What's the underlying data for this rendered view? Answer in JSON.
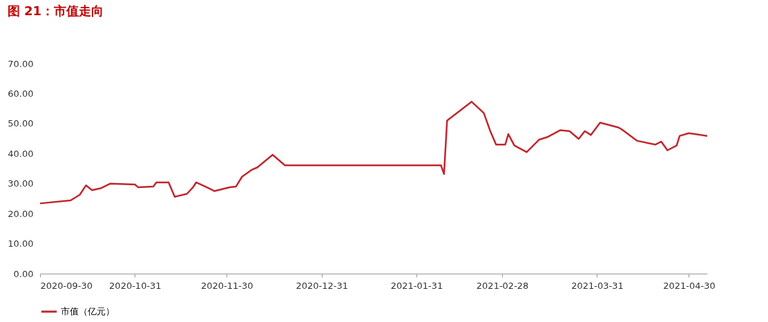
{
  "chart_data": {
    "type": "line",
    "title": "图 21：市值走向",
    "x": [
      "2020-09-30",
      "2020-10-10",
      "2020-10-13",
      "2020-10-15",
      "2020-10-17",
      "2020-10-20",
      "2020-10-23",
      "2020-10-31",
      "2020-11-01",
      "2020-11-06",
      "2020-11-07",
      "2020-11-11",
      "2020-11-13",
      "2020-11-17",
      "2020-11-19",
      "2020-11-20",
      "2020-11-24",
      "2020-11-26",
      "2020-12-01",
      "2020-12-03",
      "2020-12-05",
      "2020-12-08",
      "2020-12-10",
      "2020-12-15",
      "2020-12-19",
      "2021-02-08",
      "2021-02-09",
      "2021-02-10",
      "2021-02-18",
      "2021-02-22",
      "2021-02-24",
      "2021-02-26",
      "2021-03-01",
      "2021-03-02",
      "2021-03-04",
      "2021-03-08",
      "2021-03-12",
      "2021-03-15",
      "2021-03-19",
      "2021-03-22",
      "2021-03-25",
      "2021-03-27",
      "2021-03-29",
      "2021-04-01",
      "2021-04-07",
      "2021-04-08",
      "2021-04-13",
      "2021-04-19",
      "2021-04-21",
      "2021-04-23",
      "2021-04-26",
      "2021-04-27",
      "2021-04-30",
      "2021-05-06"
    ],
    "series": [
      {
        "name": "市值（亿元）",
        "color": "#c0272d",
        "values": [
          23.4,
          24.4,
          26.3,
          29.4,
          27.8,
          28.5,
          30.0,
          29.7,
          28.8,
          29.0,
          30.4,
          30.4,
          25.6,
          26.6,
          28.8,
          30.4,
          28.5,
          27.5,
          28.8,
          29.0,
          32.3,
          34.5,
          35.4,
          39.6,
          36.1,
          36.1,
          33.2,
          51.0,
          57.3,
          53.5,
          47.8,
          43.0,
          43.0,
          46.5,
          42.7,
          40.5,
          44.6,
          45.6,
          47.8,
          47.5,
          44.9,
          47.5,
          46.2,
          50.3,
          48.7,
          48.1,
          44.3,
          43.0,
          44.0,
          41.1,
          42.7,
          45.9,
          46.8,
          45.9
        ]
      }
    ],
    "xlim": [
      "2020-09-30",
      "2021-05-06"
    ],
    "xticks": [
      "2020-09-30",
      "2020-10-31",
      "2020-11-30",
      "2020-12-31",
      "2021-01-31",
      "2021-02-28",
      "2021-03-31",
      "2021-04-30"
    ],
    "ylim": [
      0,
      70
    ],
    "yticks": [
      {
        "value": 0,
        "label": "0.00"
      },
      {
        "value": 10,
        "label": "10.00"
      },
      {
        "value": 20,
        "label": "20.00"
      },
      {
        "value": 30,
        "label": "30.00"
      },
      {
        "value": 40,
        "label": "40.00"
      },
      {
        "value": 50,
        "label": "50.00"
      },
      {
        "value": 60,
        "label": "60.00"
      },
      {
        "value": 70,
        "label": "70.00"
      }
    ],
    "grid": false,
    "legend": "bottom",
    "marker": "none",
    "line_style": "solid"
  }
}
